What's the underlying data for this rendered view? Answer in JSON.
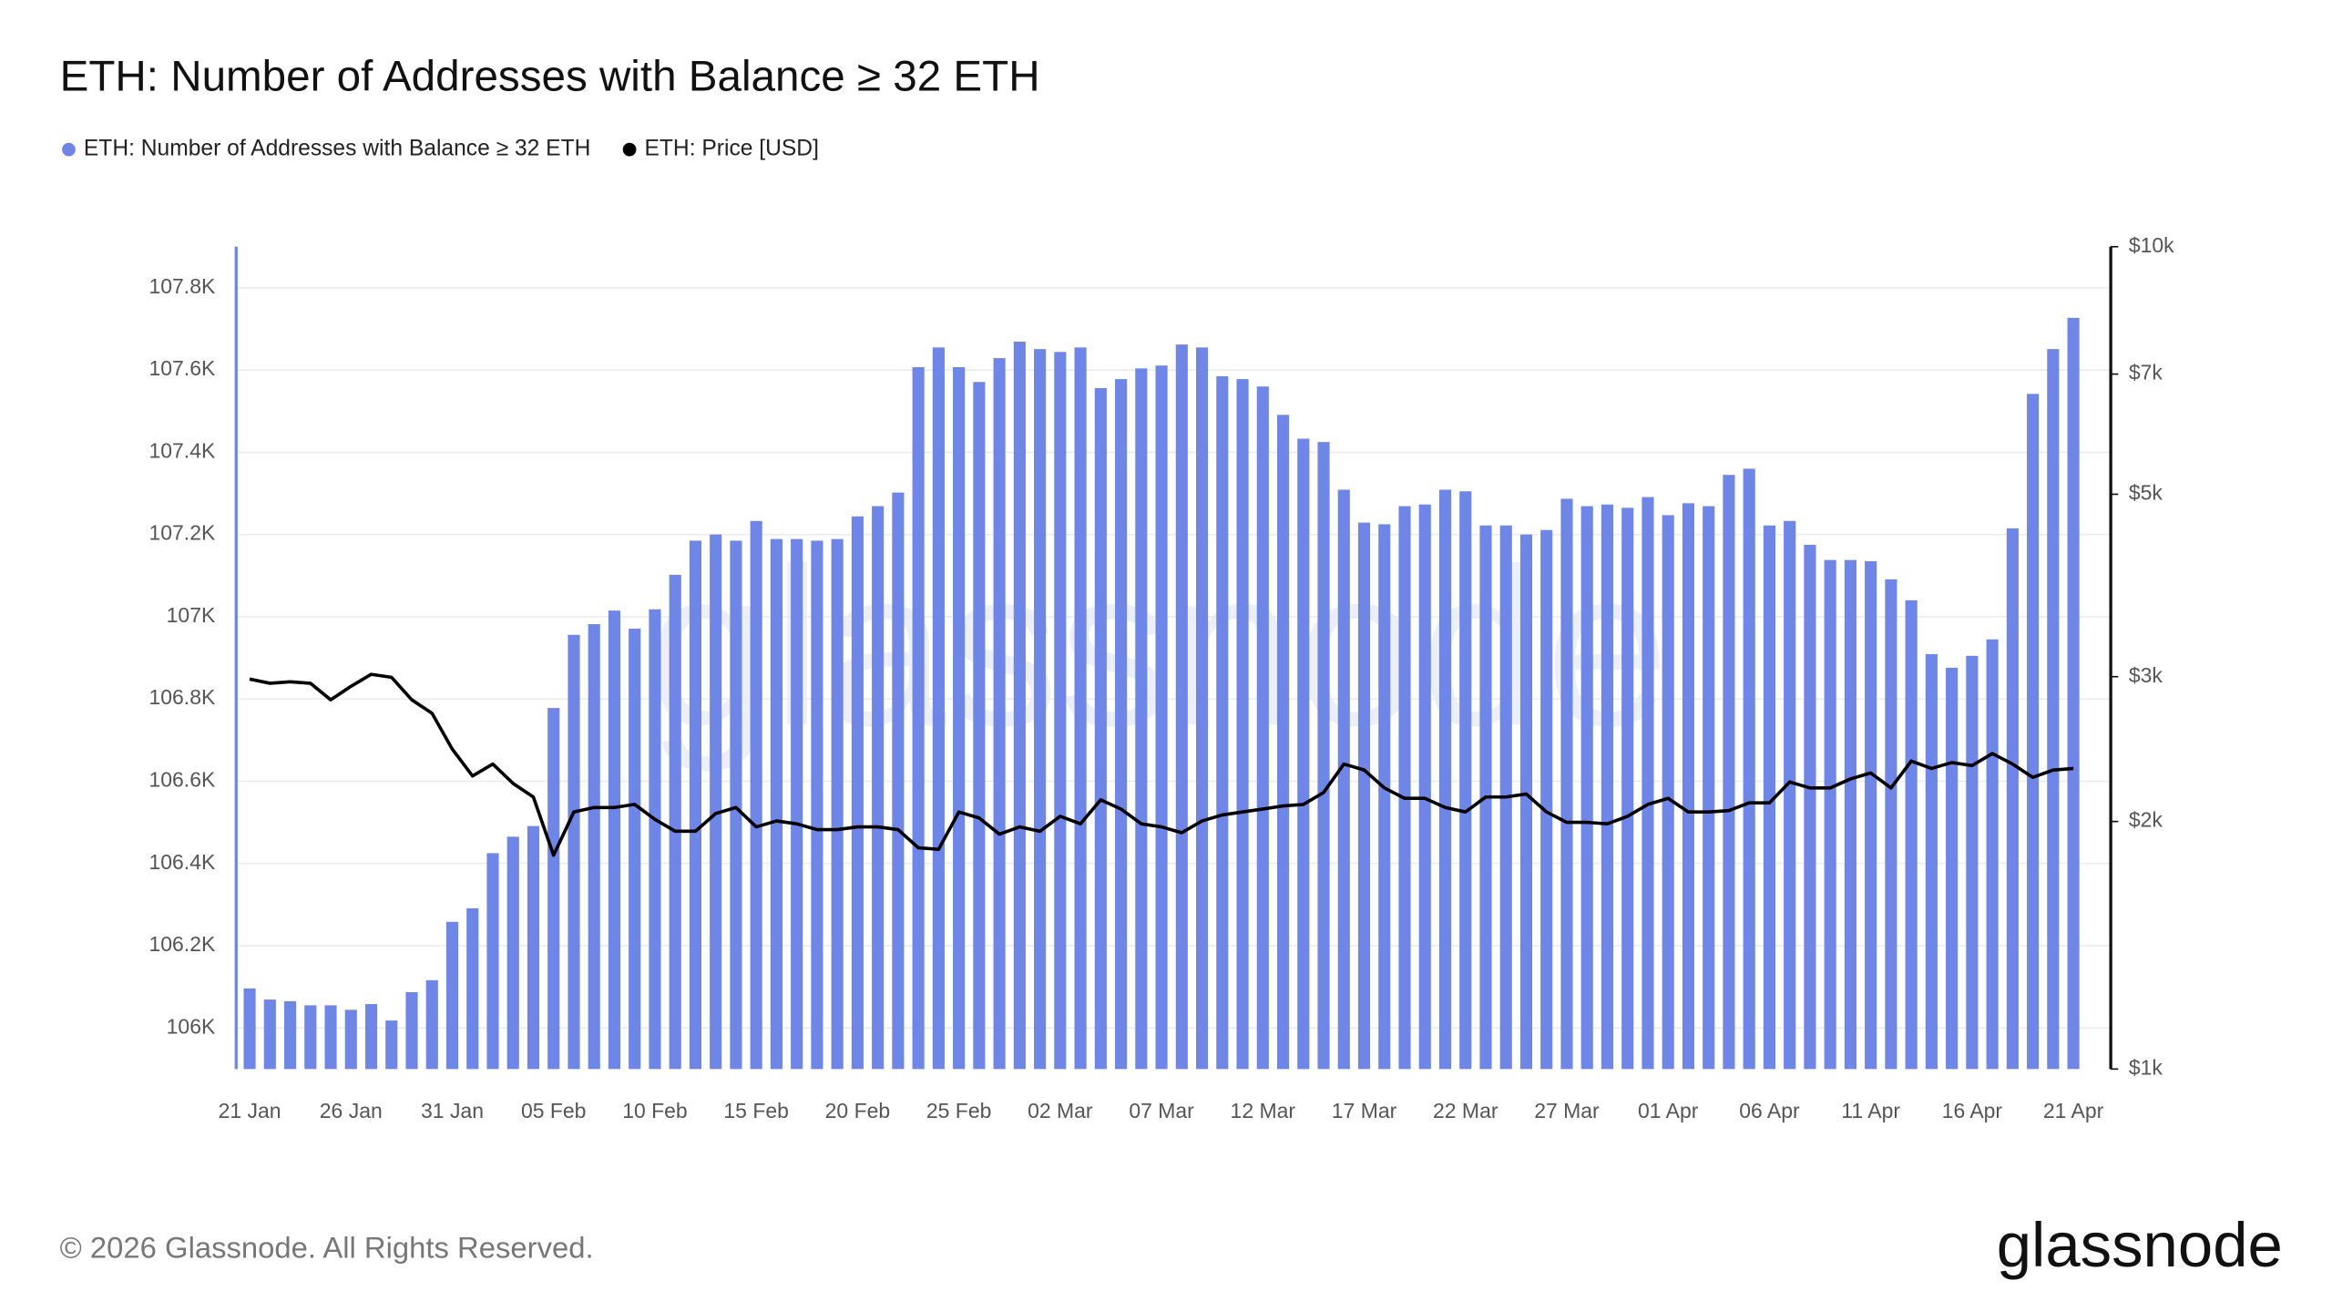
{
  "chart_data": {
    "type": "bar_line",
    "title": "ETH: Number of Addresses with Balance ≥ 32 ETH",
    "watermark": "glassnode",
    "footer": "© 2026 Glassnode. All Rights Reserved.",
    "logo": "glassnode",
    "categories": [
      "21 Jan",
      null,
      null,
      null,
      null,
      "26 Jan",
      null,
      null,
      null,
      null,
      "31 Jan",
      null,
      null,
      null,
      null,
      "05 Feb",
      null,
      null,
      null,
      null,
      "10 Feb",
      null,
      null,
      null,
      null,
      "15 Feb",
      null,
      null,
      null,
      null,
      "20 Feb",
      null,
      null,
      null,
      null,
      "25 Feb",
      null,
      null,
      null,
      null,
      "02 Mar",
      null,
      null,
      null,
      null,
      "07 Mar",
      null,
      null,
      null,
      null,
      "12 Mar",
      null,
      null,
      null,
      null,
      "17 Mar",
      null,
      null,
      null,
      null,
      "22 Mar",
      null,
      null,
      null,
      null,
      "27 Mar",
      null,
      null,
      null,
      null,
      "01 Apr",
      null,
      null,
      null,
      null,
      "06 Apr",
      null,
      null,
      null,
      null,
      "11 Apr",
      null,
      null,
      null,
      null,
      "16 Apr",
      null,
      null,
      null,
      null,
      "21 Apr"
    ],
    "series": [
      {
        "name": "ETH: Number of Addresses with Balance ≥ 32 ETH",
        "type": "bar",
        "color": "#6d86e8",
        "axis": "y",
        "values": [
          106096,
          106069,
          106065,
          106055,
          106055,
          106044,
          106058,
          106018,
          106087,
          106116,
          106258,
          106291,
          106425,
          106465,
          106491,
          106778,
          106956,
          106982,
          107015,
          106971,
          107018,
          107102,
          107185,
          107200,
          107185,
          107233,
          107189,
          107189,
          107185,
          107189,
          107244,
          107269,
          107302,
          107607,
          107655,
          107607,
          107571,
          107629,
          107669,
          107651,
          107644,
          107655,
          107556,
          107578,
          107604,
          107611,
          107662,
          107655,
          107585,
          107578,
          107560,
          107491,
          107433,
          107425,
          107309,
          107229,
          107225,
          107269,
          107273,
          107309,
          107305,
          107222,
          107222,
          107200,
          107211,
          107287,
          107269,
          107273,
          107265,
          107291,
          107247,
          107276,
          107269,
          107345,
          107360,
          107222,
          107233,
          107175,
          107138,
          107138,
          107135,
          107091,
          107040,
          106909,
          106876,
          106905,
          106945,
          107215,
          107542,
          107651,
          107727
        ]
      },
      {
        "name": "ETH: Price [USD]",
        "type": "line",
        "color": "#000000",
        "axis": "y2",
        "values": [
          2980,
          2945,
          2957,
          2945,
          2812,
          2920,
          3020,
          2995,
          2812,
          2708,
          2449,
          2272,
          2349,
          2225,
          2142,
          1820,
          2054,
          2080,
          2080,
          2098,
          2012,
          1946,
          1946,
          2045,
          2080,
          1970,
          2003,
          1987,
          1955,
          1955,
          1970,
          1970,
          1955,
          1858,
          1850,
          2054,
          2020,
          1930,
          1970,
          1946,
          2029,
          1987,
          2125,
          2071,
          1987,
          1970,
          1938,
          2003,
          2037,
          2054,
          2071,
          2089,
          2098,
          2169,
          2349,
          2310,
          2197,
          2134,
          2134,
          2080,
          2054,
          2142,
          2142,
          2160,
          2054,
          1995,
          1995,
          1987,
          2029,
          2098,
          2134,
          2054,
          2054,
          2062,
          2107,
          2107,
          2234,
          2197,
          2197,
          2253,
          2291,
          2197,
          2369,
          2320,
          2359,
          2339,
          2419,
          2349,
          2263,
          2310,
          2320
        ]
      }
    ],
    "ylim": [
      105900,
      107900
    ],
    "yticks": [
      {
        "value": 106000,
        "label": "106K"
      },
      {
        "value": 106200,
        "label": "106.2K"
      },
      {
        "value": 106400,
        "label": "106.4K"
      },
      {
        "value": 106600,
        "label": "106.6K"
      },
      {
        "value": 106800,
        "label": "106.8K"
      },
      {
        "value": 107000,
        "label": "107K"
      },
      {
        "value": 107200,
        "label": "107.2K"
      },
      {
        "value": 107400,
        "label": "107.4K"
      },
      {
        "value": 107600,
        "label": "107.6K"
      },
      {
        "value": 107800,
        "label": "107.8K"
      }
    ],
    "y2lim": [
      1000,
      10000
    ],
    "y2scale": "log",
    "y2ticks": [
      {
        "value": 1000,
        "label": "$1k"
      },
      {
        "value": 2000,
        "label": "$2k"
      },
      {
        "value": 3000,
        "label": "$3k"
      },
      {
        "value": 5000,
        "label": "$5k"
      },
      {
        "value": 7000,
        "label": "$7k"
      },
      {
        "value": 10000,
        "label": "$10k"
      }
    ],
    "grid": true,
    "legend": "top-left"
  }
}
